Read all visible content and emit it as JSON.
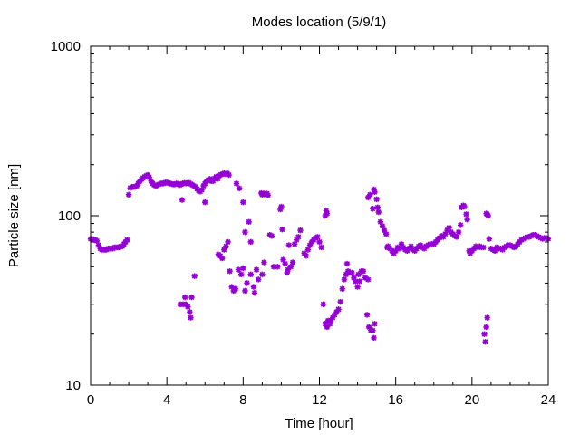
{
  "chart_data": {
    "type": "scatter",
    "title": "Modes location (5/9/1)",
    "xlabel": "Time [hour]",
    "ylabel": "Particle size [nm]",
    "xlim": [
      0,
      24
    ],
    "ylim": [
      10,
      1000
    ],
    "yscale": "log",
    "xticks": [
      "0",
      "4",
      "8",
      "12",
      "16",
      "20",
      "24"
    ],
    "yticks": [
      "10",
      "100",
      "1000"
    ],
    "grid": false,
    "marker_color": "#9400d3",
    "marker": "asterisk",
    "points": [
      [
        0.0,
        73
      ],
      [
        0.08,
        73
      ],
      [
        0.17,
        72
      ],
      [
        0.25,
        72
      ],
      [
        0.33,
        71
      ],
      [
        0.42,
        67
      ],
      [
        0.5,
        64
      ],
      [
        0.58,
        63
      ],
      [
        0.67,
        63
      ],
      [
        0.75,
        63
      ],
      [
        0.83,
        63
      ],
      [
        0.92,
        64
      ],
      [
        1.0,
        64
      ],
      [
        1.08,
        64
      ],
      [
        1.17,
        64
      ],
      [
        1.25,
        65
      ],
      [
        1.33,
        65
      ],
      [
        1.42,
        65
      ],
      [
        1.5,
        65
      ],
      [
        1.58,
        66
      ],
      [
        1.67,
        66
      ],
      [
        1.75,
        68
      ],
      [
        1.83,
        70
      ],
      [
        1.92,
        72
      ],
      [
        2.0,
        133
      ],
      [
        2.08,
        146
      ],
      [
        2.17,
        148
      ],
      [
        2.25,
        148
      ],
      [
        2.33,
        148
      ],
      [
        2.42,
        150
      ],
      [
        2.5,
        155
      ],
      [
        2.58,
        160
      ],
      [
        2.67,
        164
      ],
      [
        2.75,
        167
      ],
      [
        2.83,
        170
      ],
      [
        2.92,
        172
      ],
      [
        3.0,
        174
      ],
      [
        3.08,
        168
      ],
      [
        3.17,
        160
      ],
      [
        3.25,
        155
      ],
      [
        3.33,
        152
      ],
      [
        3.42,
        150
      ],
      [
        3.5,
        151
      ],
      [
        3.58,
        153
      ],
      [
        3.67,
        155
      ],
      [
        3.75,
        155
      ],
      [
        3.83,
        155
      ],
      [
        3.92,
        157
      ],
      [
        4.0,
        157
      ],
      [
        4.08,
        156
      ],
      [
        4.17,
        155
      ],
      [
        4.25,
        154
      ],
      [
        4.33,
        153
      ],
      [
        4.42,
        153
      ],
      [
        4.5,
        155
      ],
      [
        4.58,
        154
      ],
      [
        4.67,
        152
      ],
      [
        4.75,
        153
      ],
      [
        4.83,
        155
      ],
      [
        4.92,
        156
      ],
      [
        5.0,
        155
      ],
      [
        5.08,
        156
      ],
      [
        5.17,
        156
      ],
      [
        5.25,
        154
      ],
      [
        5.33,
        152
      ],
      [
        5.42,
        150
      ],
      [
        5.5,
        148
      ],
      [
        5.58,
        144
      ],
      [
        5.67,
        140
      ],
      [
        5.75,
        139
      ],
      [
        5.83,
        142
      ],
      [
        5.92,
        150
      ],
      [
        6.0,
        155
      ],
      [
        6.08,
        160
      ],
      [
        6.17,
        163
      ],
      [
        6.25,
        165
      ],
      [
        6.33,
        160
      ],
      [
        6.42,
        160
      ],
      [
        6.5,
        166
      ],
      [
        6.58,
        170
      ],
      [
        6.67,
        165
      ],
      [
        6.75,
        172
      ],
      [
        6.83,
        175
      ],
      [
        6.92,
        176
      ],
      [
        7.0,
        178
      ],
      [
        7.08,
        176
      ],
      [
        7.17,
        178
      ],
      [
        7.25,
        174
      ],
      [
        4.8,
        124
      ],
      [
        4.7,
        30
      ],
      [
        4.85,
        30
      ],
      [
        5.0,
        30
      ],
      [
        5.1,
        29
      ],
      [
        4.95,
        33
      ],
      [
        5.3,
        33
      ],
      [
        5.2,
        27
      ],
      [
        5.25,
        25
      ],
      [
        5.45,
        44
      ],
      [
        6.0,
        120
      ],
      [
        6.7,
        59
      ],
      [
        6.8,
        58
      ],
      [
        6.9,
        56
      ],
      [
        7.0,
        63
      ],
      [
        7.1,
        66
      ],
      [
        7.2,
        70
      ],
      [
        7.3,
        47
      ],
      [
        7.4,
        38
      ],
      [
        7.5,
        36
      ],
      [
        7.6,
        37
      ],
      [
        7.75,
        48
      ],
      [
        7.65,
        155
      ],
      [
        7.8,
        145
      ],
      [
        7.9,
        45
      ],
      [
        8.0,
        49
      ],
      [
        8.1,
        36
      ],
      [
        8.2,
        40
      ],
      [
        8.0,
        120
      ],
      [
        8.1,
        80
      ],
      [
        8.3,
        92
      ],
      [
        8.4,
        70
      ],
      [
        8.4,
        45
      ],
      [
        8.6,
        35
      ],
      [
        8.55,
        38
      ],
      [
        8.7,
        48
      ],
      [
        8.8,
        42
      ],
      [
        9.0,
        45
      ],
      [
        9.1,
        53
      ],
      [
        8.95,
        136
      ],
      [
        9.0,
        133
      ],
      [
        9.1,
        135
      ],
      [
        9.15,
        134
      ],
      [
        9.2,
        133
      ],
      [
        9.25,
        135
      ],
      [
        9.3,
        132
      ],
      [
        9.5,
        76
      ],
      [
        9.4,
        77
      ],
      [
        9.6,
        50
      ],
      [
        9.8,
        50
      ],
      [
        9.95,
        109
      ],
      [
        10.0,
        113
      ],
      [
        10.05,
        83
      ],
      [
        10.1,
        55
      ],
      [
        10.2,
        52
      ],
      [
        10.3,
        46
      ],
      [
        10.35,
        48
      ],
      [
        10.4,
        67
      ],
      [
        10.5,
        50
      ],
      [
        10.6,
        53
      ],
      [
        10.7,
        68
      ],
      [
        10.8,
        72
      ],
      [
        10.9,
        75
      ],
      [
        11.0,
        82
      ],
      [
        11.2,
        60
      ],
      [
        11.3,
        58
      ],
      [
        11.4,
        63
      ],
      [
        11.5,
        67
      ],
      [
        11.6,
        70
      ],
      [
        11.7,
        72
      ],
      [
        11.8,
        74
      ],
      [
        11.9,
        75
      ],
      [
        12.0,
        70
      ],
      [
        12.1,
        65
      ],
      [
        12.2,
        30
      ],
      [
        12.3,
        100
      ],
      [
        12.35,
        107
      ],
      [
        12.4,
        103
      ],
      [
        12.3,
        23
      ],
      [
        12.4,
        22
      ],
      [
        12.45,
        24
      ],
      [
        12.55,
        23
      ],
      [
        12.6,
        24
      ],
      [
        12.7,
        25
      ],
      [
        12.8,
        26
      ],
      [
        12.9,
        27
      ],
      [
        13.0,
        28
      ],
      [
        13.1,
        31
      ],
      [
        13.2,
        37
      ],
      [
        13.3,
        42
      ],
      [
        13.4,
        45
      ],
      [
        13.45,
        52
      ],
      [
        13.5,
        47
      ],
      [
        13.6,
        46
      ],
      [
        13.7,
        46
      ],
      [
        13.8,
        43
      ],
      [
        13.9,
        41
      ],
      [
        14.0,
        38
      ],
      [
        14.05,
        45
      ],
      [
        14.1,
        41
      ],
      [
        14.2,
        47
      ],
      [
        14.3,
        47
      ],
      [
        14.4,
        43
      ],
      [
        14.5,
        26
      ],
      [
        14.55,
        42
      ],
      [
        14.6,
        22
      ],
      [
        14.7,
        21
      ],
      [
        14.8,
        21
      ],
      [
        14.85,
        19
      ],
      [
        14.9,
        23
      ],
      [
        14.55,
        128
      ],
      [
        14.65,
        133
      ],
      [
        14.8,
        110
      ],
      [
        14.85,
        143
      ],
      [
        14.9,
        138
      ],
      [
        15.0,
        125
      ],
      [
        15.05,
        112
      ],
      [
        15.1,
        105
      ],
      [
        15.2,
        92
      ],
      [
        15.3,
        87
      ],
      [
        15.4,
        82
      ],
      [
        15.5,
        78
      ],
      [
        15.55,
        65
      ],
      [
        15.6,
        66
      ],
      [
        15.7,
        64
      ],
      [
        15.8,
        62
      ],
      [
        15.9,
        60
      ],
      [
        16.0,
        62
      ],
      [
        16.1,
        65
      ],
      [
        16.2,
        64
      ],
      [
        16.3,
        68
      ],
      [
        16.4,
        65
      ],
      [
        16.5,
        63
      ],
      [
        16.6,
        62
      ],
      [
        16.7,
        64
      ],
      [
        16.8,
        66
      ],
      [
        16.9,
        63
      ],
      [
        17.0,
        62
      ],
      [
        17.1,
        64
      ],
      [
        17.2,
        66
      ],
      [
        17.3,
        67
      ],
      [
        17.4,
        65
      ],
      [
        17.5,
        64
      ],
      [
        17.6,
        66
      ],
      [
        17.7,
        67
      ],
      [
        17.8,
        68
      ],
      [
        17.9,
        68
      ],
      [
        18.0,
        68
      ],
      [
        18.1,
        70
      ],
      [
        18.2,
        72
      ],
      [
        18.3,
        74
      ],
      [
        18.4,
        76
      ],
      [
        18.5,
        75
      ],
      [
        18.6,
        78
      ],
      [
        18.7,
        82
      ],
      [
        18.8,
        85
      ],
      [
        18.9,
        80
      ],
      [
        19.0,
        78
      ],
      [
        19.1,
        76
      ],
      [
        19.2,
        75
      ],
      [
        19.3,
        80
      ],
      [
        19.4,
        88
      ],
      [
        19.45,
        112
      ],
      [
        19.55,
        115
      ],
      [
        19.6,
        113
      ],
      [
        19.7,
        102
      ],
      [
        19.75,
        95
      ],
      [
        19.85,
        62
      ],
      [
        19.9,
        60
      ],
      [
        20.0,
        62
      ],
      [
        20.1,
        64
      ],
      [
        20.2,
        66
      ],
      [
        20.3,
        65
      ],
      [
        20.4,
        66
      ],
      [
        20.5,
        65
      ],
      [
        20.6,
        65
      ],
      [
        20.65,
        20
      ],
      [
        20.7,
        18
      ],
      [
        20.75,
        22
      ],
      [
        20.8,
        25
      ],
      [
        20.75,
        103
      ],
      [
        20.8,
        102
      ],
      [
        20.85,
        100
      ],
      [
        20.9,
        73
      ],
      [
        21.0,
        64
      ],
      [
        21.1,
        63
      ],
      [
        21.2,
        62
      ],
      [
        21.3,
        65
      ],
      [
        21.4,
        64
      ],
      [
        21.5,
        64
      ],
      [
        21.6,
        63
      ],
      [
        21.7,
        65
      ],
      [
        21.8,
        66
      ],
      [
        21.9,
        67
      ],
      [
        22.0,
        67
      ],
      [
        22.1,
        66
      ],
      [
        22.2,
        65
      ],
      [
        22.3,
        66
      ],
      [
        22.4,
        68
      ],
      [
        22.5,
        70
      ],
      [
        22.6,
        72
      ],
      [
        22.7,
        73
      ],
      [
        22.8,
        74
      ],
      [
        22.9,
        75
      ],
      [
        23.0,
        75
      ],
      [
        23.1,
        76
      ],
      [
        23.2,
        77
      ],
      [
        23.3,
        77
      ],
      [
        23.4,
        76
      ],
      [
        23.5,
        75
      ],
      [
        23.6,
        74
      ],
      [
        23.7,
        73
      ],
      [
        23.8,
        74
      ],
      [
        23.9,
        74
      ],
      [
        24.0,
        73
      ]
    ]
  }
}
